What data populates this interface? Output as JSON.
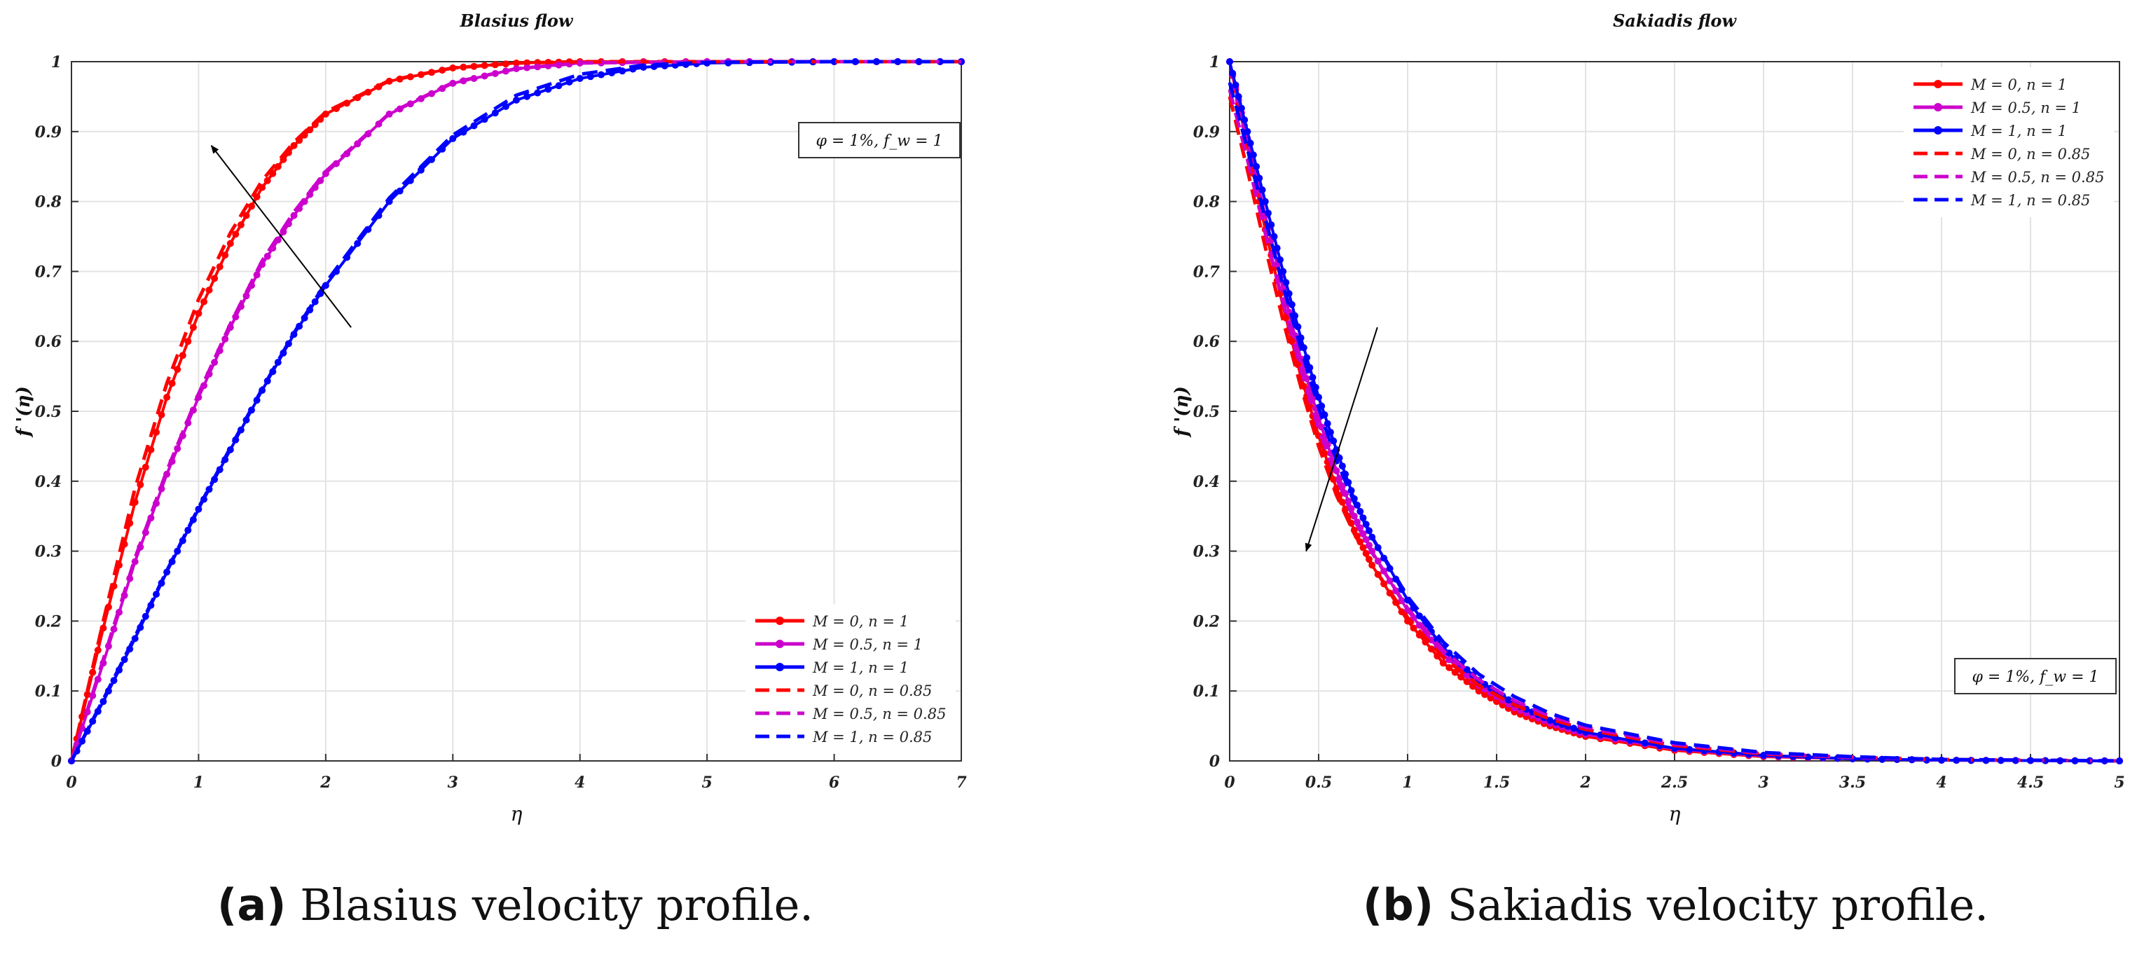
{
  "chart_data": [
    {
      "id": "a",
      "type": "line",
      "title": "Blasius flow",
      "xlabel": "η",
      "ylabel": "f '(η)",
      "xlim": [
        0,
        7
      ],
      "ylim": [
        0,
        1
      ],
      "xticks": [
        "0",
        "1",
        "2",
        "3",
        "4",
        "5",
        "6",
        "7"
      ],
      "yticks": [
        "0",
        "0.1",
        "0.2",
        "0.3",
        "0.4",
        "0.5",
        "0.6",
        "0.7",
        "0.8",
        "0.9",
        "1"
      ],
      "grid": true,
      "legend_position": "bottom-right",
      "annotation": "φ = 1%, f_w = 1",
      "arrow": {
        "from": [
          2.2,
          0.62
        ],
        "to": [
          1.1,
          0.88
        ]
      },
      "series": [
        {
          "name": "M = 0, n = 1",
          "color": "#ff0000",
          "style": "solid-dots",
          "x": [
            0,
            0.25,
            0.5,
            0.75,
            1,
            1.25,
            1.5,
            1.75,
            2,
            2.5,
            3,
            3.5,
            4,
            5,
            6,
            7
          ],
          "y": [
            0,
            0.19,
            0.37,
            0.52,
            0.64,
            0.74,
            0.82,
            0.88,
            0.925,
            0.972,
            0.991,
            0.998,
            1,
            1,
            1,
            1
          ]
        },
        {
          "name": "M = 0.5, n = 1",
          "color": "#cc00cc",
          "style": "solid-dots",
          "x": [
            0,
            0.25,
            0.5,
            0.75,
            1,
            1.25,
            1.5,
            1.75,
            2,
            2.5,
            3,
            3.5,
            4,
            5,
            6,
            7
          ],
          "y": [
            0,
            0.14,
            0.285,
            0.41,
            0.52,
            0.62,
            0.71,
            0.78,
            0.84,
            0.925,
            0.969,
            0.99,
            0.998,
            1,
            1,
            1
          ]
        },
        {
          "name": "M = 1, n = 1",
          "color": "#0000ff",
          "style": "solid-dots",
          "x": [
            0,
            0.25,
            0.5,
            0.75,
            1,
            1.25,
            1.5,
            1.75,
            2,
            2.5,
            3,
            3.5,
            4,
            4.5,
            5,
            6,
            7
          ],
          "y": [
            0,
            0.085,
            0.175,
            0.27,
            0.36,
            0.445,
            0.53,
            0.61,
            0.68,
            0.8,
            0.89,
            0.945,
            0.976,
            0.992,
            0.998,
            1,
            1
          ]
        },
        {
          "name": "M = 0, n = 0.85",
          "color": "#ff0000",
          "style": "dashed",
          "x": [
            0,
            0.25,
            0.5,
            0.75,
            1,
            1.25,
            1.5,
            1.75,
            2,
            2.5,
            3,
            3.5,
            4,
            5,
            6,
            7
          ],
          "y": [
            0,
            0.2,
            0.39,
            0.54,
            0.66,
            0.755,
            0.83,
            0.885,
            0.928,
            0.973,
            0.991,
            0.998,
            1,
            1,
            1,
            1
          ]
        },
        {
          "name": "M = 0.5, n = 0.85",
          "color": "#cc00cc",
          "style": "dashed",
          "x": [
            0,
            0.25,
            0.5,
            0.75,
            1,
            1.25,
            1.5,
            1.75,
            2,
            2.5,
            3,
            3.5,
            4,
            5,
            6,
            7
          ],
          "y": [
            0,
            0.145,
            0.29,
            0.415,
            0.525,
            0.625,
            0.715,
            0.785,
            0.843,
            0.926,
            0.97,
            0.99,
            0.998,
            1,
            1,
            1
          ]
        },
        {
          "name": "M = 1, n = 0.85",
          "color": "#0000ff",
          "style": "dashed",
          "x": [
            0,
            0.25,
            0.5,
            0.75,
            1,
            1.25,
            1.5,
            1.75,
            2,
            2.5,
            3,
            3.5,
            4,
            4.5,
            5,
            6,
            7
          ],
          "y": [
            0,
            0.088,
            0.178,
            0.272,
            0.362,
            0.448,
            0.532,
            0.612,
            0.684,
            0.805,
            0.895,
            0.952,
            0.982,
            0.995,
            0.999,
            1,
            1
          ]
        }
      ]
    },
    {
      "id": "b",
      "type": "line",
      "title": "Sakiadis flow",
      "xlabel": "η",
      "ylabel": "f '(η)",
      "xlim": [
        0,
        5
      ],
      "ylim": [
        0,
        1
      ],
      "xticks": [
        "0",
        "0.5",
        "1",
        "1.5",
        "2",
        "2.5",
        "3",
        "3.5",
        "4",
        "4.5",
        "5"
      ],
      "yticks": [
        "0",
        "0.1",
        "0.2",
        "0.3",
        "0.4",
        "0.5",
        "0.6",
        "0.7",
        "0.8",
        "0.9",
        "1"
      ],
      "grid": true,
      "legend_position": "top-right",
      "annotation": "φ = 1%, f_w = 1",
      "arrow": {
        "from": [
          0.83,
          0.62
        ],
        "to": [
          0.43,
          0.3
        ]
      },
      "series": [
        {
          "name": "M = 0, n = 1",
          "color": "#ff0000",
          "style": "solid-dots",
          "x": [
            0,
            0.1,
            0.2,
            0.3,
            0.4,
            0.5,
            0.6,
            0.7,
            0.8,
            1,
            1.2,
            1.4,
            1.6,
            1.8,
            2,
            2.5,
            3,
            3.5,
            4,
            4.5,
            5
          ],
          "y": [
            1,
            0.88,
            0.76,
            0.65,
            0.55,
            0.465,
            0.39,
            0.33,
            0.28,
            0.2,
            0.14,
            0.1,
            0.07,
            0.05,
            0.035,
            0.015,
            0.006,
            0.003,
            0.001,
            0.0005,
            0
          ]
        },
        {
          "name": "M = 0.5, n = 1",
          "color": "#cc00cc",
          "style": "solid-dots",
          "x": [
            0,
            0.1,
            0.2,
            0.3,
            0.4,
            0.5,
            0.6,
            0.7,
            0.8,
            1,
            1.2,
            1.4,
            1.6,
            1.8,
            2,
            2.5,
            3,
            3.5,
            4,
            4.5,
            5
          ],
          "y": [
            1,
            0.89,
            0.78,
            0.675,
            0.575,
            0.49,
            0.415,
            0.35,
            0.3,
            0.215,
            0.152,
            0.108,
            0.076,
            0.054,
            0.038,
            0.017,
            0.007,
            0.003,
            0.001,
            0.0005,
            0
          ]
        },
        {
          "name": "M = 1, n = 1",
          "color": "#0000ff",
          "style": "solid-dots",
          "x": [
            0,
            0.1,
            0.2,
            0.3,
            0.4,
            0.5,
            0.6,
            0.7,
            0.8,
            1,
            1.2,
            1.4,
            1.6,
            1.8,
            2,
            2.5,
            3,
            3.5,
            4,
            4.5,
            5
          ],
          "y": [
            1,
            0.9,
            0.8,
            0.7,
            0.605,
            0.52,
            0.445,
            0.375,
            0.32,
            0.23,
            0.162,
            0.115,
            0.082,
            0.058,
            0.041,
            0.018,
            0.008,
            0.003,
            0.001,
            0.0005,
            0
          ]
        },
        {
          "name": "M = 0, n = 0.85",
          "color": "#ff0000",
          "style": "dashed",
          "x": [
            0,
            0.1,
            0.2,
            0.3,
            0.4,
            0.5,
            0.6,
            0.7,
            0.8,
            1,
            1.2,
            1.4,
            1.6,
            1.8,
            2,
            2.5,
            3,
            3.5,
            4,
            4.5,
            5
          ],
          "y": [
            0.95,
            0.845,
            0.735,
            0.63,
            0.535,
            0.45,
            0.38,
            0.325,
            0.28,
            0.205,
            0.148,
            0.108,
            0.08,
            0.06,
            0.045,
            0.022,
            0.01,
            0.005,
            0.002,
            0.001,
            0
          ]
        },
        {
          "name": "M = 0.5, n = 0.85",
          "color": "#cc00cc",
          "style": "dashed",
          "x": [
            0,
            0.1,
            0.2,
            0.3,
            0.4,
            0.5,
            0.6,
            0.7,
            0.8,
            1,
            1.2,
            1.4,
            1.6,
            1.8,
            2,
            2.5,
            3,
            3.5,
            4,
            4.5,
            5
          ],
          "y": [
            0.96,
            0.86,
            0.755,
            0.655,
            0.56,
            0.475,
            0.405,
            0.345,
            0.298,
            0.218,
            0.158,
            0.116,
            0.086,
            0.064,
            0.048,
            0.024,
            0.011,
            0.005,
            0.002,
            0.001,
            0
          ]
        },
        {
          "name": "M = 1, n = 0.85",
          "color": "#0000ff",
          "style": "dashed",
          "x": [
            0,
            0.1,
            0.2,
            0.3,
            0.4,
            0.5,
            0.6,
            0.7,
            0.8,
            1,
            1.2,
            1.4,
            1.6,
            1.8,
            2,
            2.5,
            3,
            3.5,
            4,
            4.5,
            5
          ],
          "y": [
            0.97,
            0.875,
            0.775,
            0.68,
            0.59,
            0.505,
            0.43,
            0.37,
            0.32,
            0.235,
            0.17,
            0.124,
            0.092,
            0.068,
            0.051,
            0.026,
            0.012,
            0.006,
            0.002,
            0.001,
            0
          ]
        }
      ]
    }
  ],
  "captions": {
    "a": {
      "tag": "(a)",
      "text": "Blasius velocity profile."
    },
    "b": {
      "tag": "(b)",
      "text": "Sakiadis velocity profile."
    }
  }
}
